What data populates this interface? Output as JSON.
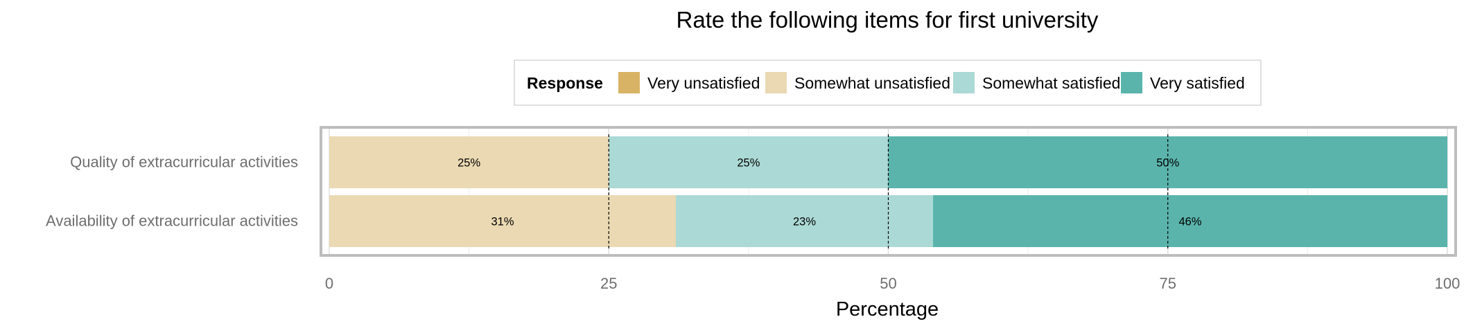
{
  "chart_data": {
    "type": "bar",
    "orientation": "horizontal",
    "stacked": true,
    "title": "Rate the following items for first university",
    "xlabel": "Percentage",
    "ylabel": "",
    "xlim": [
      0,
      100
    ],
    "xticks": [
      0,
      25,
      50,
      75,
      100
    ],
    "reference_lines": [
      25,
      50,
      75
    ],
    "legend": {
      "title": "Response",
      "placement": "top-center",
      "entries": [
        "Very unsatisfied",
        "Somewhat unsatisfied",
        "Somewhat satisfied",
        "Very satisfied"
      ]
    },
    "categories": [
      "Quality of extracurricular activities",
      "Availability of extracurricular activities"
    ],
    "series": [
      {
        "name": "Very unsatisfied",
        "color": "#D8B365",
        "values": [
          0,
          0
        ],
        "labels": [
          "",
          ""
        ]
      },
      {
        "name": "Somewhat unsatisfied",
        "color": "#EAD9B2",
        "values": [
          25,
          31
        ],
        "labels": [
          "25%",
          "31%"
        ]
      },
      {
        "name": "Somewhat satisfied",
        "color": "#ABD9D5",
        "values": [
          25,
          23
        ],
        "labels": [
          "25%",
          "23%"
        ]
      },
      {
        "name": "Very satisfied",
        "color": "#5AB4AC",
        "values": [
          50,
          46
        ],
        "labels": [
          "50%",
          "46%"
        ]
      }
    ],
    "grid": true
  }
}
